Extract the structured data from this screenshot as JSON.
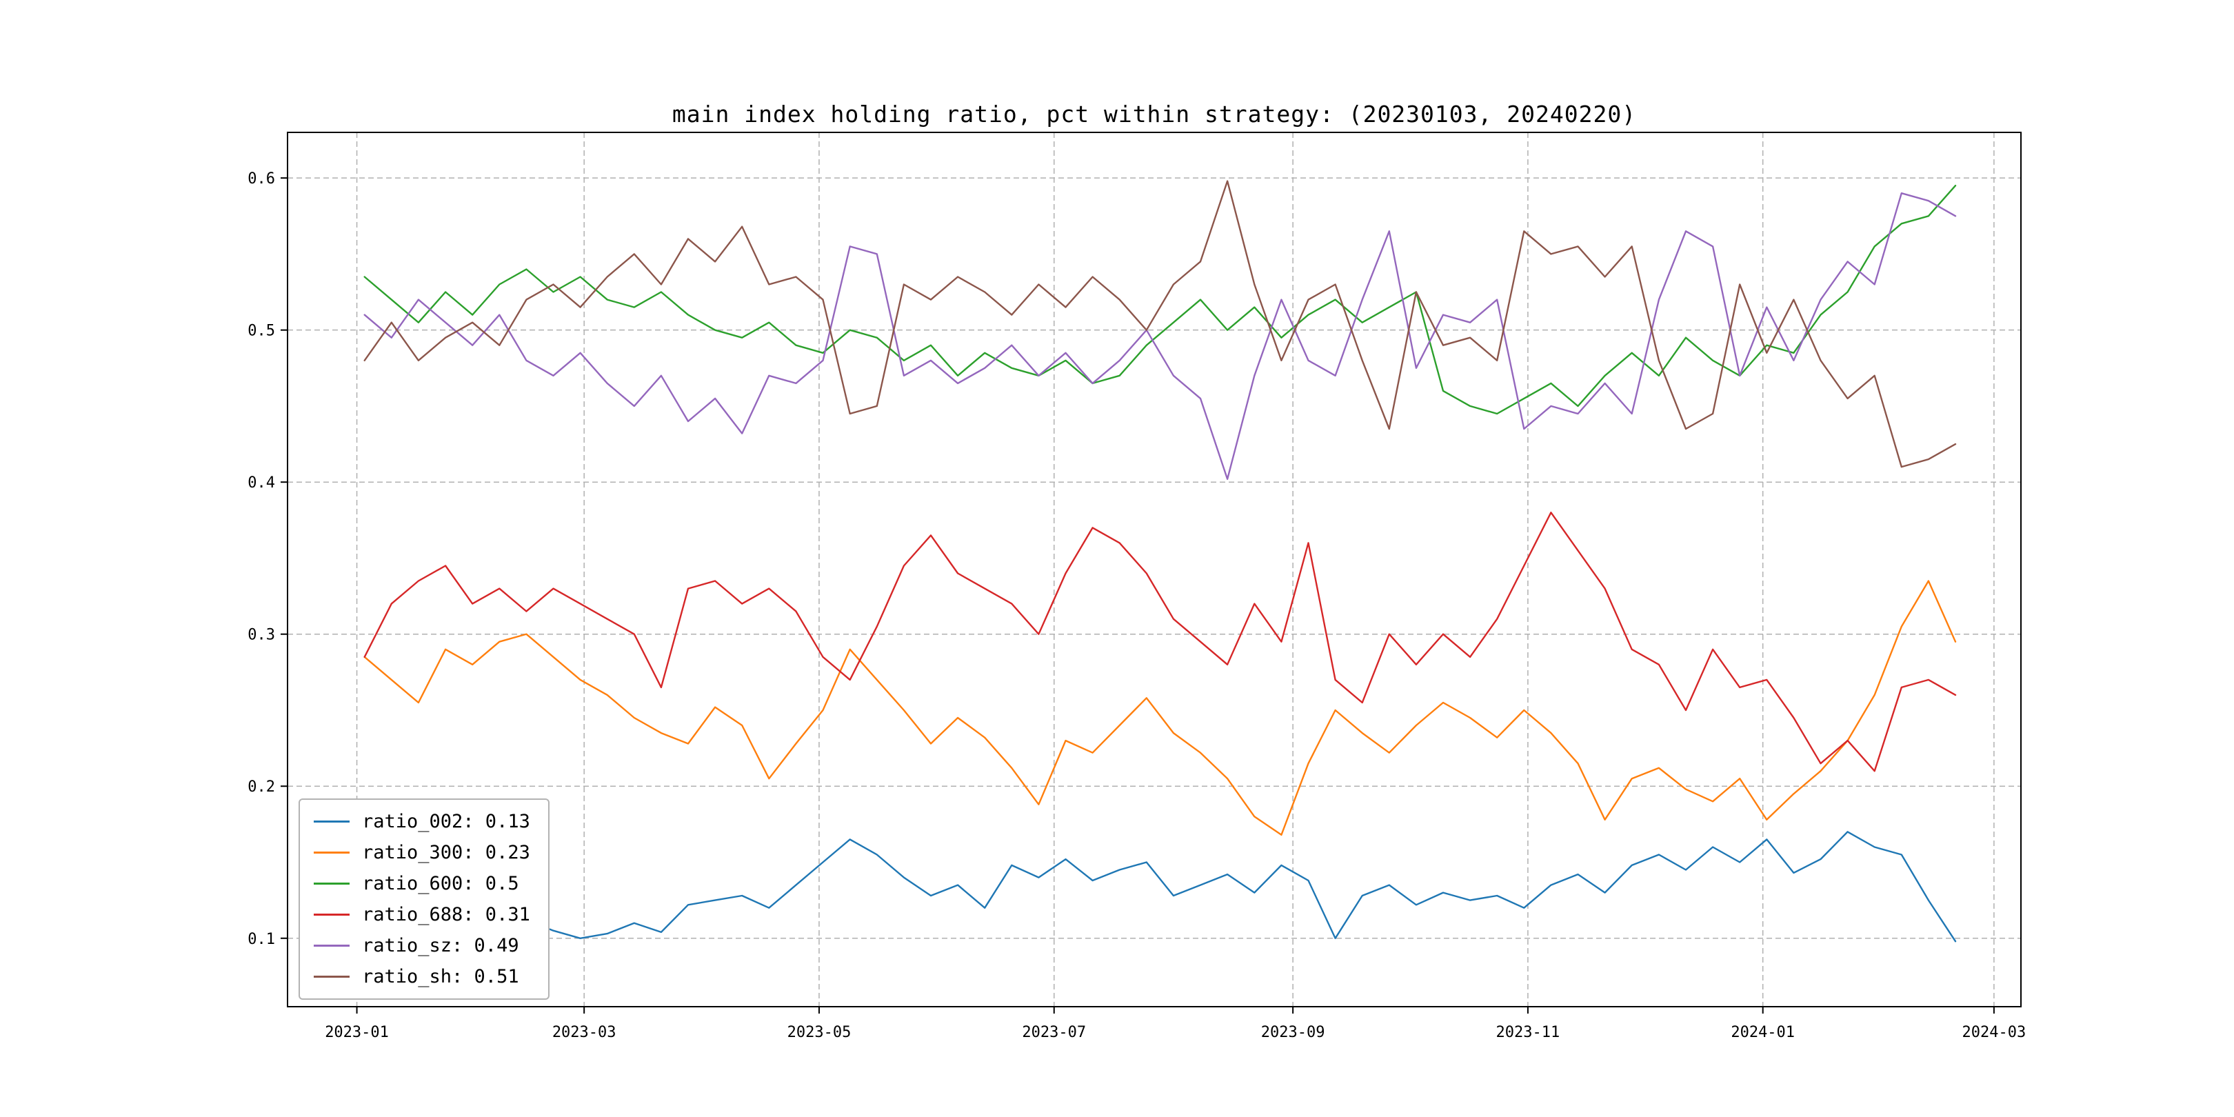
{
  "title": "main index holding ratio, pct within strategy: (20230103, 20240220)",
  "chart_data": {
    "type": "line",
    "title": "main index holding ratio, pct within strategy: (20230103, 20240220)",
    "xlabel": "",
    "ylabel": "",
    "grid": true,
    "grid_style": "dashed",
    "grid_color": "#b0b0b0",
    "legend_position": "lower left",
    "x_unit": "days since 2023-01-03",
    "xlim": [
      -20,
      430
    ],
    "ylim": [
      0.055,
      0.63
    ],
    "x_ticks": {
      "positions": [
        -2,
        57,
        118,
        179,
        241,
        302,
        363,
        423
      ],
      "labels": [
        "2023-01",
        "2023-03",
        "2023-05",
        "2023-07",
        "2023-09",
        "2023-11",
        "2024-01",
        "2024-03"
      ]
    },
    "y_ticks": {
      "positions": [
        0.1,
        0.2,
        0.3,
        0.4,
        0.5,
        0.6
      ],
      "labels": [
        "0.1",
        "0.2",
        "0.3",
        "0.4",
        "0.5",
        "0.6"
      ]
    },
    "x_days": [
      0,
      7,
      14,
      21,
      28,
      35,
      42,
      49,
      56,
      63,
      70,
      77,
      84,
      91,
      98,
      105,
      112,
      119,
      126,
      133,
      140,
      147,
      154,
      161,
      168,
      175,
      182,
      189,
      196,
      203,
      210,
      217,
      224,
      231,
      238,
      245,
      252,
      259,
      266,
      273,
      280,
      287,
      294,
      301,
      308,
      315,
      322,
      329,
      336,
      343,
      350,
      357,
      364,
      371,
      378,
      385,
      392,
      399,
      406,
      413
    ],
    "series": [
      {
        "name": "ratio_002",
        "color": "#1f77b4",
        "values": [
          0.13,
          0.125,
          0.12,
          0.128,
          0.122,
          0.118,
          0.112,
          0.105,
          0.1,
          0.103,
          0.11,
          0.104,
          0.122,
          0.125,
          0.128,
          0.12,
          0.135,
          0.15,
          0.165,
          0.155,
          0.14,
          0.128,
          0.135,
          0.12,
          0.148,
          0.14,
          0.152,
          0.138,
          0.145,
          0.15,
          0.128,
          0.135,
          0.142,
          0.13,
          0.148,
          0.138,
          0.1,
          0.128,
          0.135,
          0.122,
          0.13,
          0.125,
          0.128,
          0.12,
          0.135,
          0.142,
          0.13,
          0.148,
          0.155,
          0.145,
          0.16,
          0.15,
          0.165,
          0.143,
          0.152,
          0.17,
          0.16,
          0.155,
          0.125,
          0.098
        ]
      },
      {
        "name": "ratio_300",
        "color": "#ff7f0e",
        "values": [
          0.285,
          0.27,
          0.255,
          0.29,
          0.28,
          0.295,
          0.3,
          0.285,
          0.27,
          0.26,
          0.245,
          0.235,
          0.228,
          0.252,
          0.24,
          0.205,
          0.228,
          0.25,
          0.29,
          0.27,
          0.25,
          0.228,
          0.245,
          0.232,
          0.212,
          0.188,
          0.23,
          0.222,
          0.24,
          0.258,
          0.235,
          0.222,
          0.205,
          0.18,
          0.168,
          0.215,
          0.25,
          0.235,
          0.222,
          0.24,
          0.255,
          0.245,
          0.232,
          0.25,
          0.235,
          0.215,
          0.178,
          0.205,
          0.212,
          0.198,
          0.19,
          0.205,
          0.178,
          0.195,
          0.21,
          0.23,
          0.26,
          0.305,
          0.335,
          0.295
        ]
      },
      {
        "name": "ratio_600",
        "color": "#2ca02c",
        "values": [
          0.535,
          0.52,
          0.505,
          0.525,
          0.51,
          0.53,
          0.54,
          0.525,
          0.535,
          0.52,
          0.515,
          0.525,
          0.51,
          0.5,
          0.495,
          0.505,
          0.49,
          0.485,
          0.5,
          0.495,
          0.48,
          0.49,
          0.47,
          0.485,
          0.475,
          0.47,
          0.48,
          0.465,
          0.47,
          0.49,
          0.505,
          0.52,
          0.5,
          0.515,
          0.495,
          0.51,
          0.52,
          0.505,
          0.515,
          0.525,
          0.46,
          0.45,
          0.445,
          0.455,
          0.465,
          0.45,
          0.47,
          0.485,
          0.47,
          0.495,
          0.48,
          0.47,
          0.49,
          0.485,
          0.51,
          0.525,
          0.555,
          0.57,
          0.575,
          0.595
        ]
      },
      {
        "name": "ratio_688",
        "color": "#d62728",
        "values": [
          0.285,
          0.32,
          0.335,
          0.345,
          0.32,
          0.33,
          0.315,
          0.33,
          0.32,
          0.31,
          0.3,
          0.265,
          0.33,
          0.335,
          0.32,
          0.33,
          0.315,
          0.285,
          0.27,
          0.305,
          0.345,
          0.365,
          0.34,
          0.33,
          0.32,
          0.3,
          0.34,
          0.37,
          0.36,
          0.34,
          0.31,
          0.295,
          0.28,
          0.32,
          0.295,
          0.36,
          0.27,
          0.255,
          0.3,
          0.28,
          0.3,
          0.285,
          0.31,
          0.345,
          0.38,
          0.355,
          0.33,
          0.29,
          0.28,
          0.25,
          0.29,
          0.265,
          0.27,
          0.245,
          0.215,
          0.23,
          0.21,
          0.265,
          0.27,
          0.26
        ]
      },
      {
        "name": "ratio_sz",
        "color": "#9467bd",
        "values": [
          0.51,
          0.495,
          0.52,
          0.505,
          0.49,
          0.51,
          0.48,
          0.47,
          0.485,
          0.465,
          0.45,
          0.47,
          0.44,
          0.455,
          0.432,
          0.47,
          0.465,
          0.48,
          0.555,
          0.55,
          0.47,
          0.48,
          0.465,
          0.475,
          0.49,
          0.47,
          0.485,
          0.465,
          0.48,
          0.5,
          0.47,
          0.455,
          0.402,
          0.47,
          0.52,
          0.48,
          0.47,
          0.52,
          0.565,
          0.475,
          0.51,
          0.505,
          0.52,
          0.435,
          0.45,
          0.445,
          0.465,
          0.445,
          0.52,
          0.565,
          0.555,
          0.47,
          0.515,
          0.48,
          0.52,
          0.545,
          0.53,
          0.59,
          0.585,
          0.575
        ]
      },
      {
        "name": "ratio_sh",
        "color": "#8c564b",
        "values": [
          0.48,
          0.505,
          0.48,
          0.495,
          0.505,
          0.49,
          0.52,
          0.53,
          0.515,
          0.535,
          0.55,
          0.53,
          0.56,
          0.545,
          0.568,
          0.53,
          0.535,
          0.52,
          0.445,
          0.45,
          0.53,
          0.52,
          0.535,
          0.525,
          0.51,
          0.53,
          0.515,
          0.535,
          0.52,
          0.5,
          0.53,
          0.545,
          0.598,
          0.53,
          0.48,
          0.52,
          0.53,
          0.48,
          0.435,
          0.525,
          0.49,
          0.495,
          0.48,
          0.565,
          0.55,
          0.555,
          0.535,
          0.555,
          0.48,
          0.435,
          0.445,
          0.53,
          0.485,
          0.52,
          0.48,
          0.455,
          0.47,
          0.41,
          0.415,
          0.425
        ]
      }
    ],
    "legend": {
      "entries": [
        {
          "label": "ratio_002: 0.13",
          "color": "#1f77b4"
        },
        {
          "label": "ratio_300: 0.23",
          "color": "#ff7f0e"
        },
        {
          "label": "ratio_600: 0.5",
          "color": "#2ca02c"
        },
        {
          "label": "ratio_688: 0.31",
          "color": "#d62728"
        },
        {
          "label": "ratio_sz: 0.49",
          "color": "#9467bd"
        },
        {
          "label": "ratio_sh: 0.51",
          "color": "#8c564b"
        }
      ]
    }
  }
}
